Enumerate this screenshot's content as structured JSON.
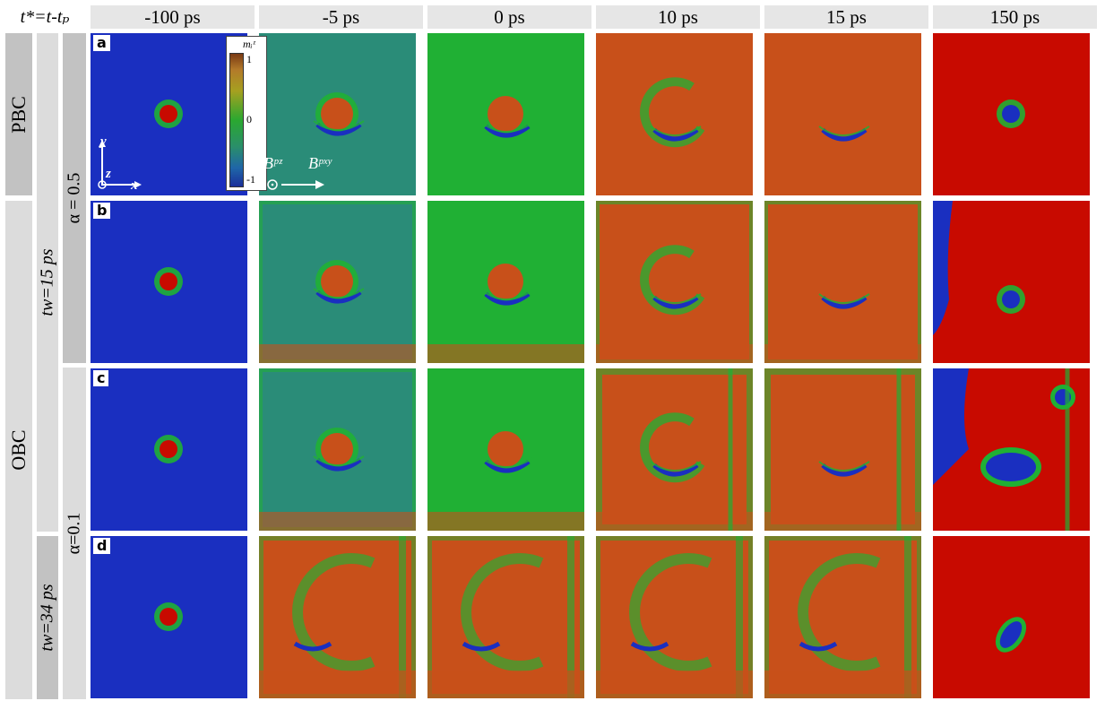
{
  "header": {
    "time_label": "t*=t-tₚ",
    "columns": [
      "-100 ps",
      "-5 ps",
      "0 ps",
      "10 ps",
      "15 ps",
      "150 ps"
    ]
  },
  "side_labels": {
    "pbc": "PBC",
    "obc": "OBC",
    "tw_15": "tw=15 ps",
    "tw_34": "tw=34 ps",
    "alpha_05": "α = 0.5",
    "alpha_01": "α=0.1"
  },
  "panel_labels": [
    "a",
    "b",
    "c",
    "d"
  ],
  "colorbar": {
    "title": "mᵢᶻ",
    "ticks": [
      "1",
      "0",
      "-1"
    ]
  },
  "axes": {
    "x": "x",
    "y": "y",
    "z": "z"
  },
  "field_labels": {
    "bz": "Bᵖᶻ",
    "bxy": "Bᵖˣʸ"
  },
  "colors": {
    "blue": "#1a2fc0",
    "green": "#20b034",
    "teal": "#2a8c78",
    "orange": "#c8501a",
    "red": "#c80a00"
  }
}
